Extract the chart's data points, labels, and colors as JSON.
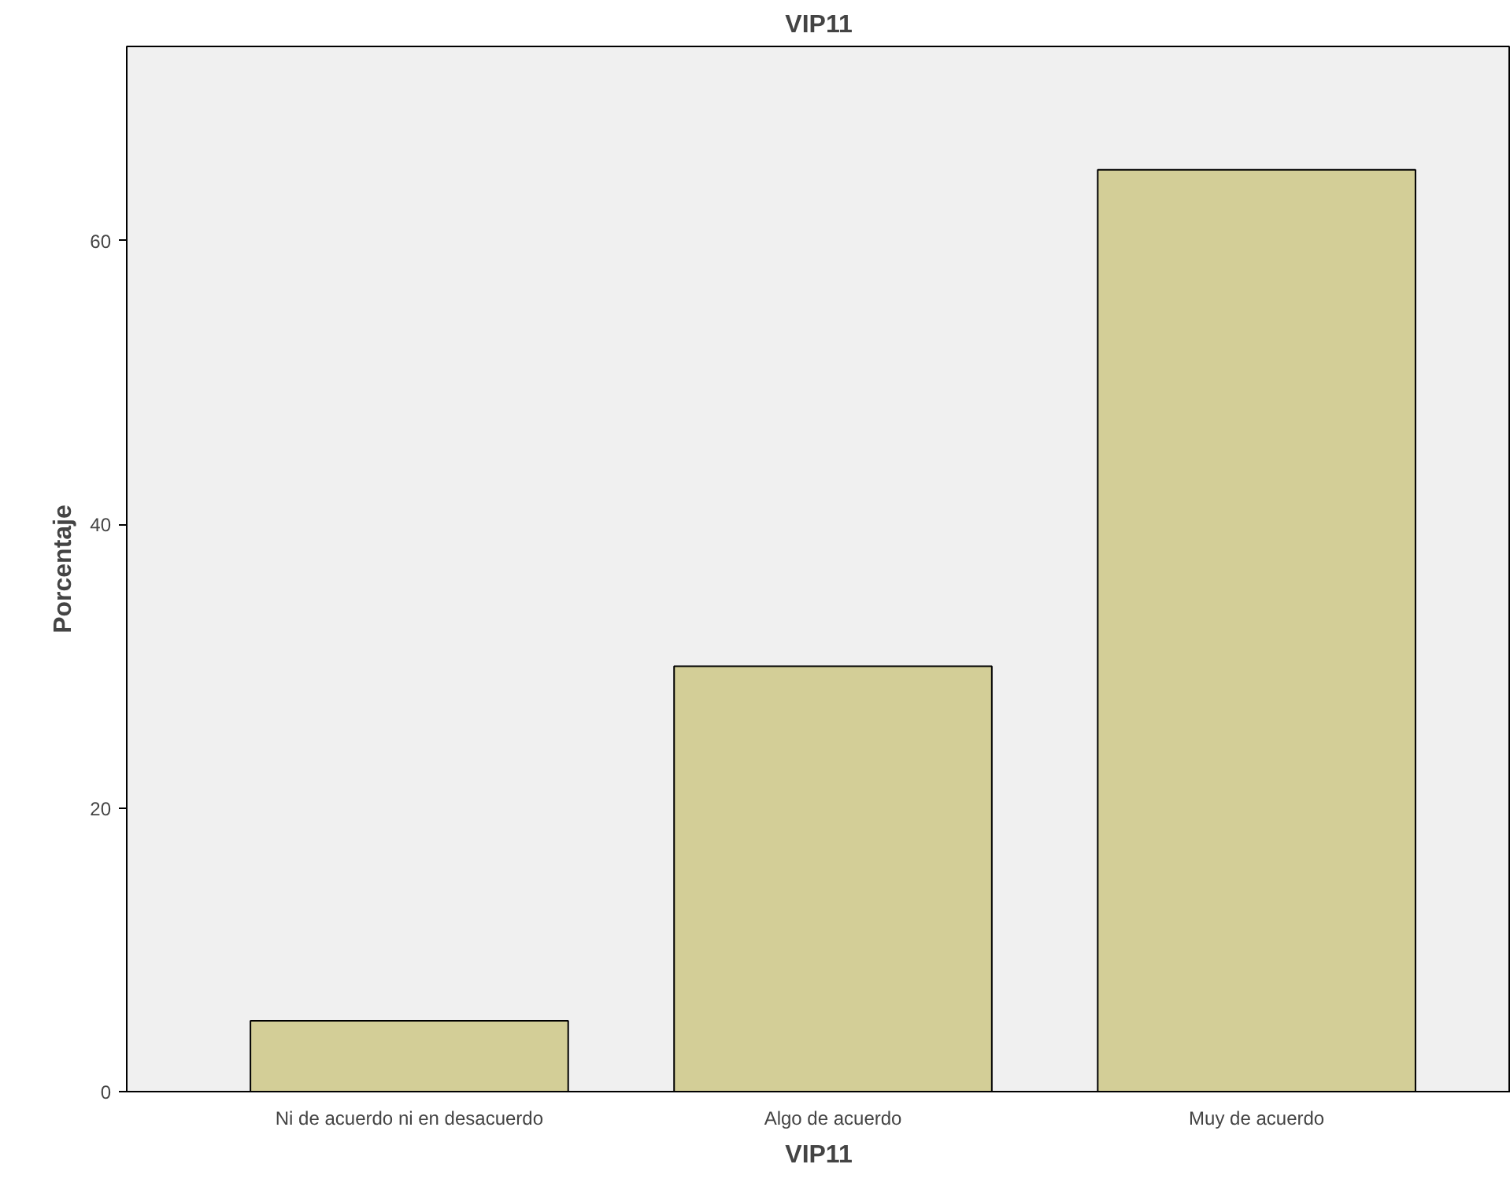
{
  "chart_data": {
    "type": "bar",
    "title": "VIP11",
    "xlabel": "VIP11",
    "ylabel": "Porcentaje",
    "categories": [
      "Ni de acuerdo ni en desacuerdo",
      "Algo de acuerdo",
      "Muy de acuerdo"
    ],
    "values": [
      5,
      30,
      65
    ],
    "color": "#d3ce97",
    "ylim": [
      0,
      73.7
    ],
    "yticks": [
      0,
      20,
      40,
      60
    ],
    "grid": false
  }
}
